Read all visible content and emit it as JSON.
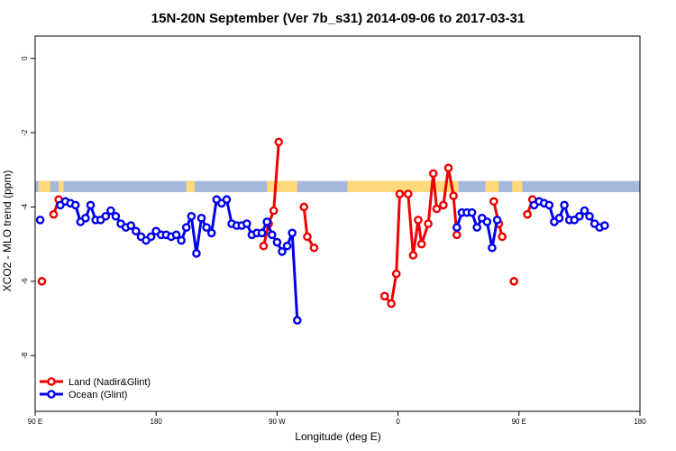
{
  "chart_data": {
    "type": "line",
    "title": "15N-20N September (Ver 7b_s31)   2014-09-06 to 2017-03-31",
    "xlabel": "Longitude (deg E)",
    "ylabel": "XCO2 - MLO trend (ppm)",
    "xlim": [
      90,
      450
    ],
    "ylim": [
      -9.5,
      0.6
    ],
    "x_ticks": [
      {
        "value": 90,
        "label": "90 E"
      },
      {
        "value": 162,
        "label": "180"
      },
      {
        "value": 234,
        "label": "90 W"
      },
      {
        "value": 306,
        "label": "0"
      },
      {
        "value": 378,
        "label": "90 E"
      },
      {
        "value": 450,
        "label": "180"
      }
    ],
    "y_ticks": [
      {
        "value": 0,
        "label": "0"
      },
      {
        "value": -2,
        "label": "-2"
      },
      {
        "value": -4,
        "label": "-4"
      },
      {
        "value": -6,
        "label": "-6"
      },
      {
        "value": -8,
        "label": "-8"
      }
    ],
    "legend_position": "bottom-left",
    "land_mask_band": {
      "y_range": [
        -3.6,
        -3.3
      ],
      "land_color": "#ffd97a",
      "ocean_color": "#a4b8dc"
    },
    "series": [
      {
        "name": "Land (Nadir&Glint)",
        "color": "#ee0000",
        "segments": [
          [
            [
              94,
              -6.0
            ]
          ],
          [
            [
              101,
              -4.2
            ],
            [
              104,
              -3.8
            ]
          ],
          [
            [
              226,
              -5.05
            ],
            [
              229,
              -4.45
            ],
            [
              232,
              -4.1
            ],
            [
              235,
              -2.25
            ]
          ],
          [
            [
              250,
              -4.0
            ],
            [
              252,
              -4.8
            ],
            [
              256,
              -5.1
            ]
          ],
          [
            [
              298,
              -6.4
            ],
            [
              302,
              -6.6
            ],
            [
              305,
              -5.8
            ],
            [
              307,
              -3.65
            ],
            [
              312,
              -3.65
            ],
            [
              315,
              -5.3
            ],
            [
              318,
              -4.35
            ],
            [
              320,
              -5.0
            ],
            [
              324,
              -4.45
            ],
            [
              327,
              -3.1
            ],
            [
              329,
              -4.05
            ],
            [
              333,
              -3.95
            ],
            [
              336,
              -2.95
            ],
            [
              339,
              -3.7
            ],
            [
              341,
              -4.75
            ]
          ],
          [
            [
              363,
              -3.85
            ],
            [
              366,
              -4.45
            ],
            [
              368,
              -4.8
            ]
          ],
          [
            [
              375,
              -6.0
            ]
          ],
          [
            [
              383,
              -4.2
            ],
            [
              386,
              -3.8
            ]
          ]
        ]
      },
      {
        "name": "Ocean (Glint)",
        "color": "#0000ee",
        "segments": [
          [
            [
              93,
              -4.35
            ]
          ],
          [
            [
              105,
              -3.95
            ],
            [
              108,
              -3.85
            ],
            [
              111,
              -3.9
            ],
            [
              114,
              -3.95
            ],
            [
              117,
              -4.4
            ],
            [
              120,
              -4.3
            ],
            [
              123,
              -3.95
            ],
            [
              126,
              -4.35
            ],
            [
              129,
              -4.35
            ],
            [
              132,
              -4.25
            ],
            [
              135,
              -4.1
            ],
            [
              138,
              -4.25
            ],
            [
              141,
              -4.45
            ],
            [
              144,
              -4.55
            ],
            [
              147,
              -4.5
            ],
            [
              150,
              -4.65
            ],
            [
              153,
              -4.8
            ],
            [
              156,
              -4.9
            ],
            [
              159,
              -4.8
            ],
            [
              162,
              -4.65
            ],
            [
              165,
              -4.75
            ],
            [
              168,
              -4.75
            ],
            [
              171,
              -4.8
            ],
            [
              174,
              -4.75
            ],
            [
              177,
              -4.9
            ],
            [
              180,
              -4.55
            ],
            [
              183,
              -4.25
            ],
            [
              186,
              -5.25
            ],
            [
              189,
              -4.3
            ],
            [
              192,
              -4.55
            ],
            [
              195,
              -4.7
            ],
            [
              198,
              -3.8
            ],
            [
              201,
              -3.9
            ],
            [
              204,
              -3.8
            ],
            [
              207,
              -4.45
            ],
            [
              210,
              -4.5
            ],
            [
              213,
              -4.5
            ],
            [
              216,
              -4.45
            ],
            [
              219,
              -4.75
            ],
            [
              222,
              -4.7
            ],
            [
              225,
              -4.7
            ],
            [
              228,
              -4.4
            ],
            [
              231,
              -4.75
            ],
            [
              234,
              -4.95
            ],
            [
              237,
              -5.2
            ],
            [
              240,
              -5.05
            ],
            [
              243,
              -4.7
            ],
            [
              246,
              -7.05
            ]
          ],
          [
            [
              341,
              -4.55
            ],
            [
              344,
              -4.15
            ],
            [
              347,
              -4.15
            ],
            [
              350,
              -4.15
            ],
            [
              353,
              -4.55
            ],
            [
              356,
              -4.3
            ],
            [
              359,
              -4.4
            ],
            [
              362,
              -5.1
            ],
            [
              365,
              -4.35
            ]
          ],
          [
            [
              387,
              -3.95
            ],
            [
              390,
              -3.85
            ],
            [
              393,
              -3.9
            ],
            [
              396,
              -3.95
            ],
            [
              399,
              -4.4
            ],
            [
              402,
              -4.3
            ],
            [
              405,
              -3.95
            ],
            [
              408,
              -4.35
            ],
            [
              411,
              -4.35
            ],
            [
              414,
              -4.25
            ],
            [
              417,
              -4.1
            ],
            [
              420,
              -4.25
            ],
            [
              423,
              -4.45
            ],
            [
              426,
              -4.55
            ],
            [
              429,
              -4.5
            ]
          ]
        ]
      }
    ]
  }
}
